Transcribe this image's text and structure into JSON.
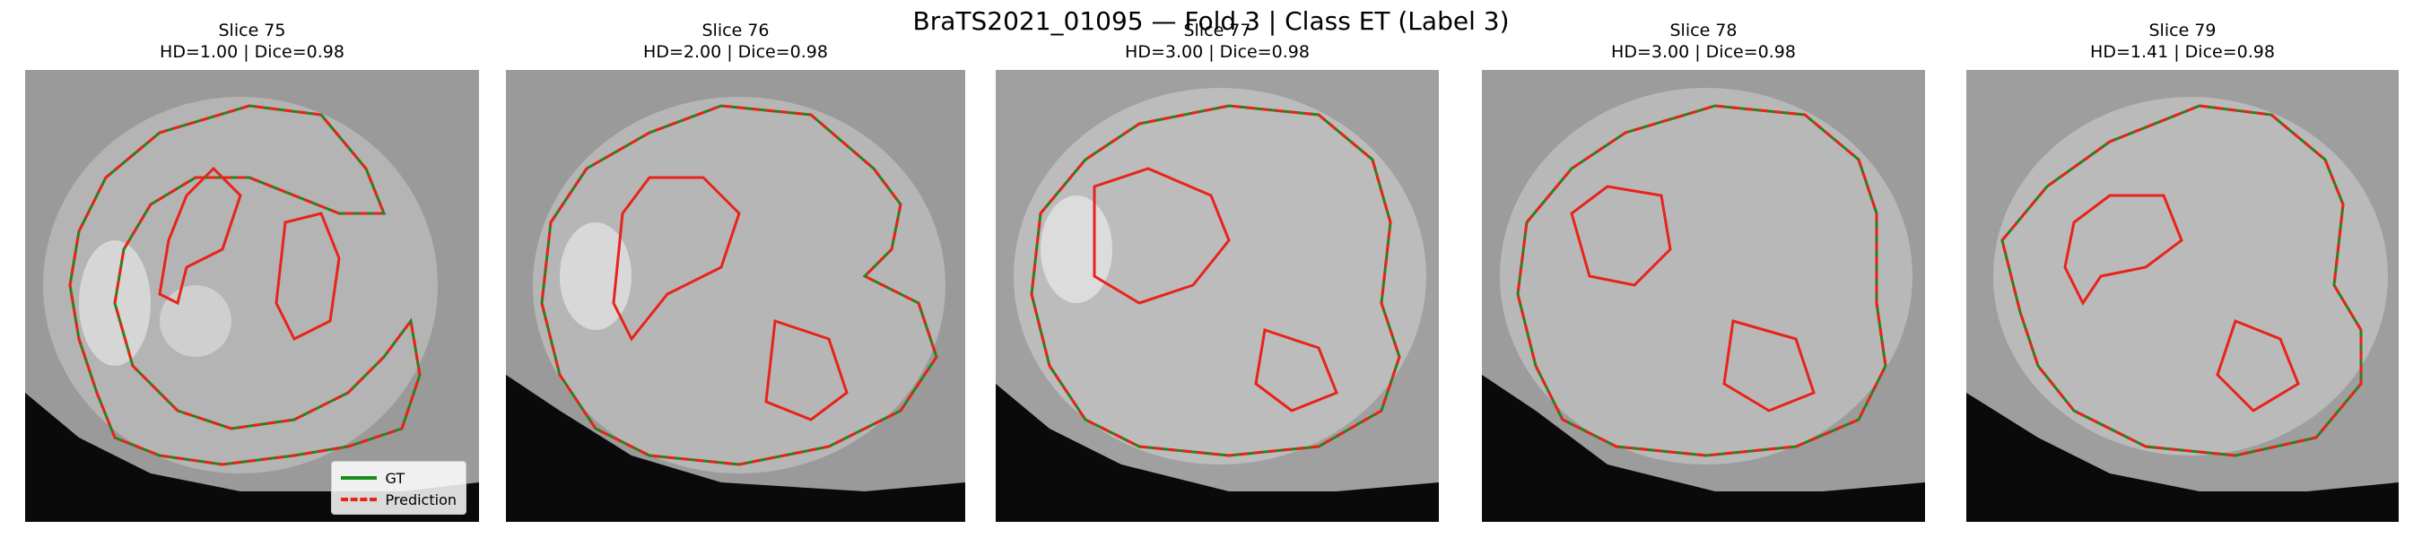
{
  "figure": {
    "title": "BraTS2021_01095 — Fold 3 | Class ET (Label 3)"
  },
  "panels": [
    {
      "slice": "Slice 75",
      "metrics": "HD=1.00 | Dice=0.98"
    },
    {
      "slice": "Slice 76",
      "metrics": "HD=2.00 | Dice=0.98"
    },
    {
      "slice": "Slice 77",
      "metrics": "HD=3.00 | Dice=0.98"
    },
    {
      "slice": "Slice 78",
      "metrics": "HD=3.00 | Dice=0.98"
    },
    {
      "slice": "Slice 79",
      "metrics": "HD=1.41 | Dice=0.98"
    }
  ],
  "legend": {
    "gt_label": "GT",
    "gt_color": "#1a8a1a",
    "pred_label": "Prediction",
    "pred_color": "#e8231a"
  }
}
